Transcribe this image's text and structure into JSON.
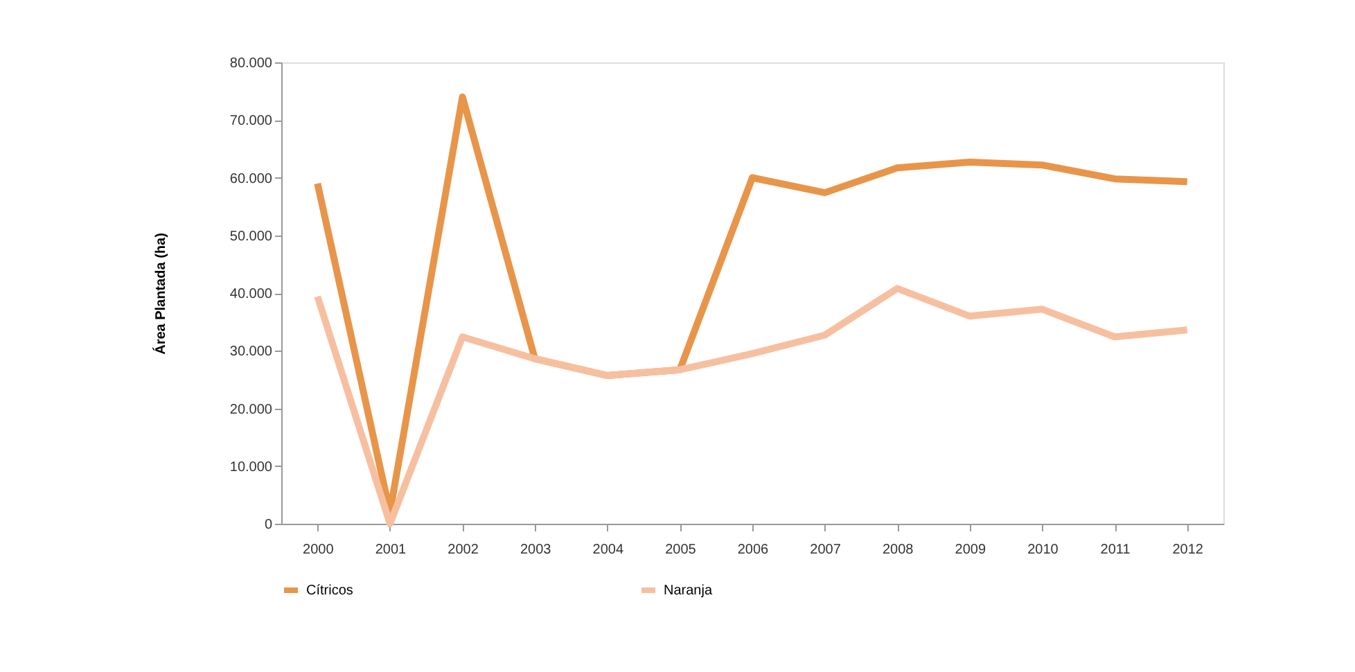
{
  "chart_data": {
    "type": "line",
    "ylabel": "Área Plantada (ha)",
    "categories": [
      "2000",
      "2001",
      "2002",
      "2003",
      "2004",
      "2005",
      "2006",
      "2007",
      "2008",
      "2009",
      "2010",
      "2011",
      "2012"
    ],
    "series": [
      {
        "name": "Cítricos",
        "color": "#e8954a",
        "values": [
          59000,
          2000,
          74000,
          28600,
          25700,
          26700,
          60000,
          57400,
          61700,
          62700,
          62200,
          59800,
          59300
        ]
      },
      {
        "name": "Naranja",
        "color": "#f6c0a0",
        "values": [
          39400,
          0,
          32400,
          28600,
          25700,
          26700,
          29500,
          32700,
          40800,
          36000,
          37200,
          32400,
          33600
        ]
      }
    ],
    "ylim": [
      0,
      80000
    ],
    "yticks": [
      0,
      {
        "value": 10000,
        "label": "10.000"
      },
      {
        "value": 20000,
        "label": "20.000"
      },
      {
        "value": 30000,
        "label": "30.000"
      },
      {
        "value": 40000,
        "label": "40.000"
      },
      {
        "value": 50000,
        "label": "50.000"
      },
      {
        "value": 60000,
        "label": "60.000"
      },
      {
        "value": 70000,
        "label": "70.000"
      },
      {
        "value": 80000,
        "label": "80.000"
      }
    ],
    "grid": false,
    "legend": "bottom",
    "marker": "none",
    "line_style": "solid"
  }
}
